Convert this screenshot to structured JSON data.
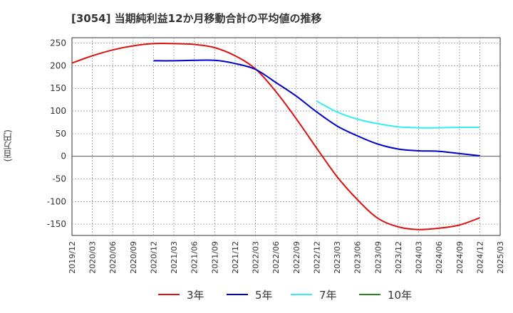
{
  "chart_data": {
    "type": "line",
    "title": "[3054]  当期純利益12か月移動合計の平均値の推移",
    "ylabel": "(百万円)",
    "xlabel": "",
    "ylim": [
      -175,
      262
    ],
    "yticks": [
      250,
      200,
      150,
      100,
      50,
      0,
      -50,
      -100,
      -150
    ],
    "x_tick_labels": [
      "2019/12",
      "2020/03",
      "2020/06",
      "2020/09",
      "2020/12",
      "2021/03",
      "2021/06",
      "2021/09",
      "2021/12",
      "2022/03",
      "2022/06",
      "2022/09",
      "2022/12",
      "2023/03",
      "2023/06",
      "2023/09",
      "2023/12",
      "2024/03",
      "2024/06",
      "2024/09",
      "2024/12",
      "2025/03"
    ],
    "grid": true,
    "legend_position": "bottom",
    "series": [
      {
        "name": "3年",
        "color": "#dd1111",
        "start_index": 0,
        "values": [
          206,
          222,
          235,
          244,
          249,
          249,
          247,
          240,
          222,
          193,
          143,
          83,
          18,
          -45,
          -96,
          -137,
          -156,
          -162,
          -159,
          -152,
          -136
        ]
      },
      {
        "name": "5年",
        "color": "#0000cc",
        "start_index": 4,
        "values": [
          211,
          211,
          212,
          212,
          205,
          192,
          163,
          133,
          98,
          67,
          45,
          27,
          16,
          12,
          11,
          6,
          1
        ]
      },
      {
        "name": "7年",
        "color": "#33eeee",
        "start_index": 12,
        "values": [
          122,
          98,
          82,
          72,
          65,
          63,
          63,
          64,
          64
        ]
      },
      {
        "name": "10年",
        "color": "#228822",
        "start_index": 21,
        "values": []
      }
    ]
  }
}
